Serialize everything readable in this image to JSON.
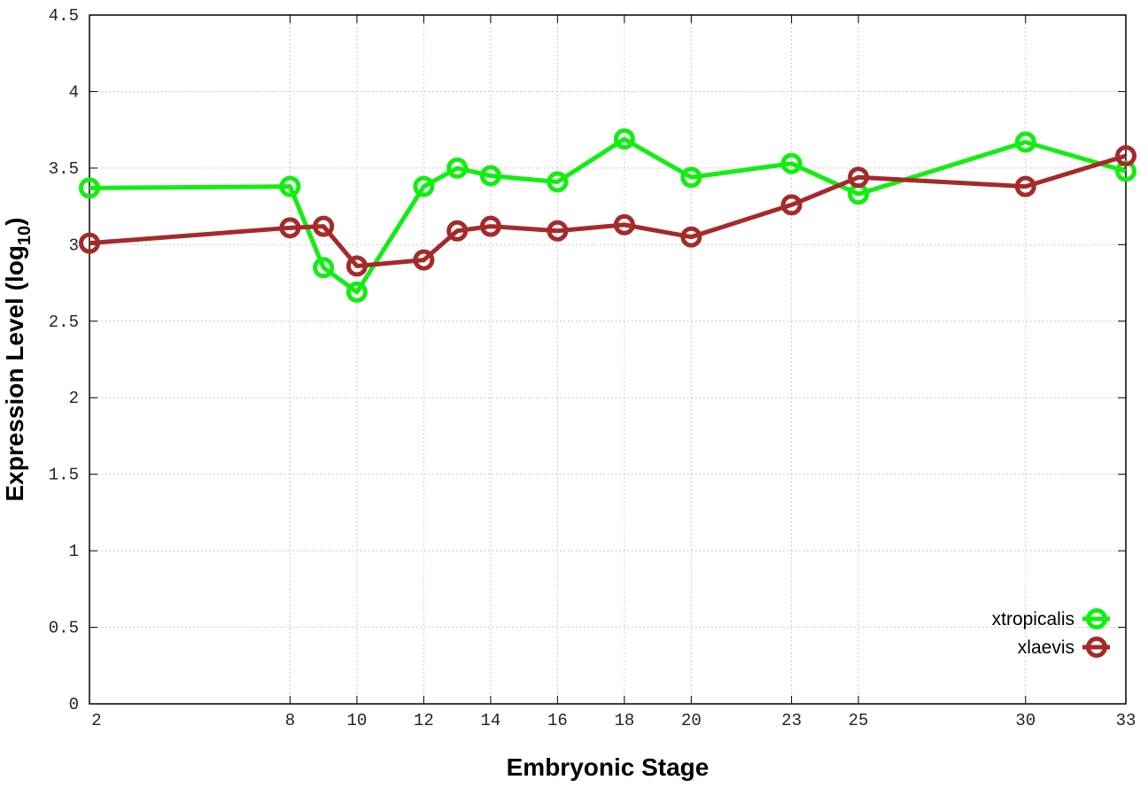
{
  "chart_data": {
    "type": "line",
    "xlabel": "Embryonic Stage",
    "ylabel": "Expression Level (log",
    "ylabel_subscript": "10",
    "ylabel_close": ")",
    "x": [
      2,
      8,
      9,
      10,
      12,
      13,
      14,
      16,
      18,
      20,
      23,
      25,
      30,
      33
    ],
    "xticks": [
      "2",
      "8",
      "10",
      "12",
      "14",
      "16",
      "18",
      "20",
      "23",
      "25",
      "30",
      "33"
    ],
    "yticks": [
      "0",
      "0.5",
      "1",
      "1.5",
      "2",
      "2.5",
      "3",
      "3.5",
      "4",
      "4.5"
    ],
    "xlim": [
      2,
      33
    ],
    "ylim": [
      0,
      4.5
    ],
    "grid": true,
    "legend_position": "bottom-right",
    "series": [
      {
        "name": "xtropicalis",
        "color": "#11ee11",
        "values": [
          3.37,
          3.38,
          2.85,
          2.69,
          3.38,
          3.5,
          3.45,
          3.41,
          3.69,
          3.44,
          3.53,
          3.33,
          3.67,
          3.48
        ]
      },
      {
        "name": "xlaevis",
        "color": "#a52a2a",
        "values": [
          3.01,
          3.11,
          3.12,
          2.86,
          2.9,
          3.09,
          3.12,
          3.09,
          3.13,
          3.05,
          3.26,
          3.44,
          3.38,
          3.58
        ]
      }
    ]
  }
}
